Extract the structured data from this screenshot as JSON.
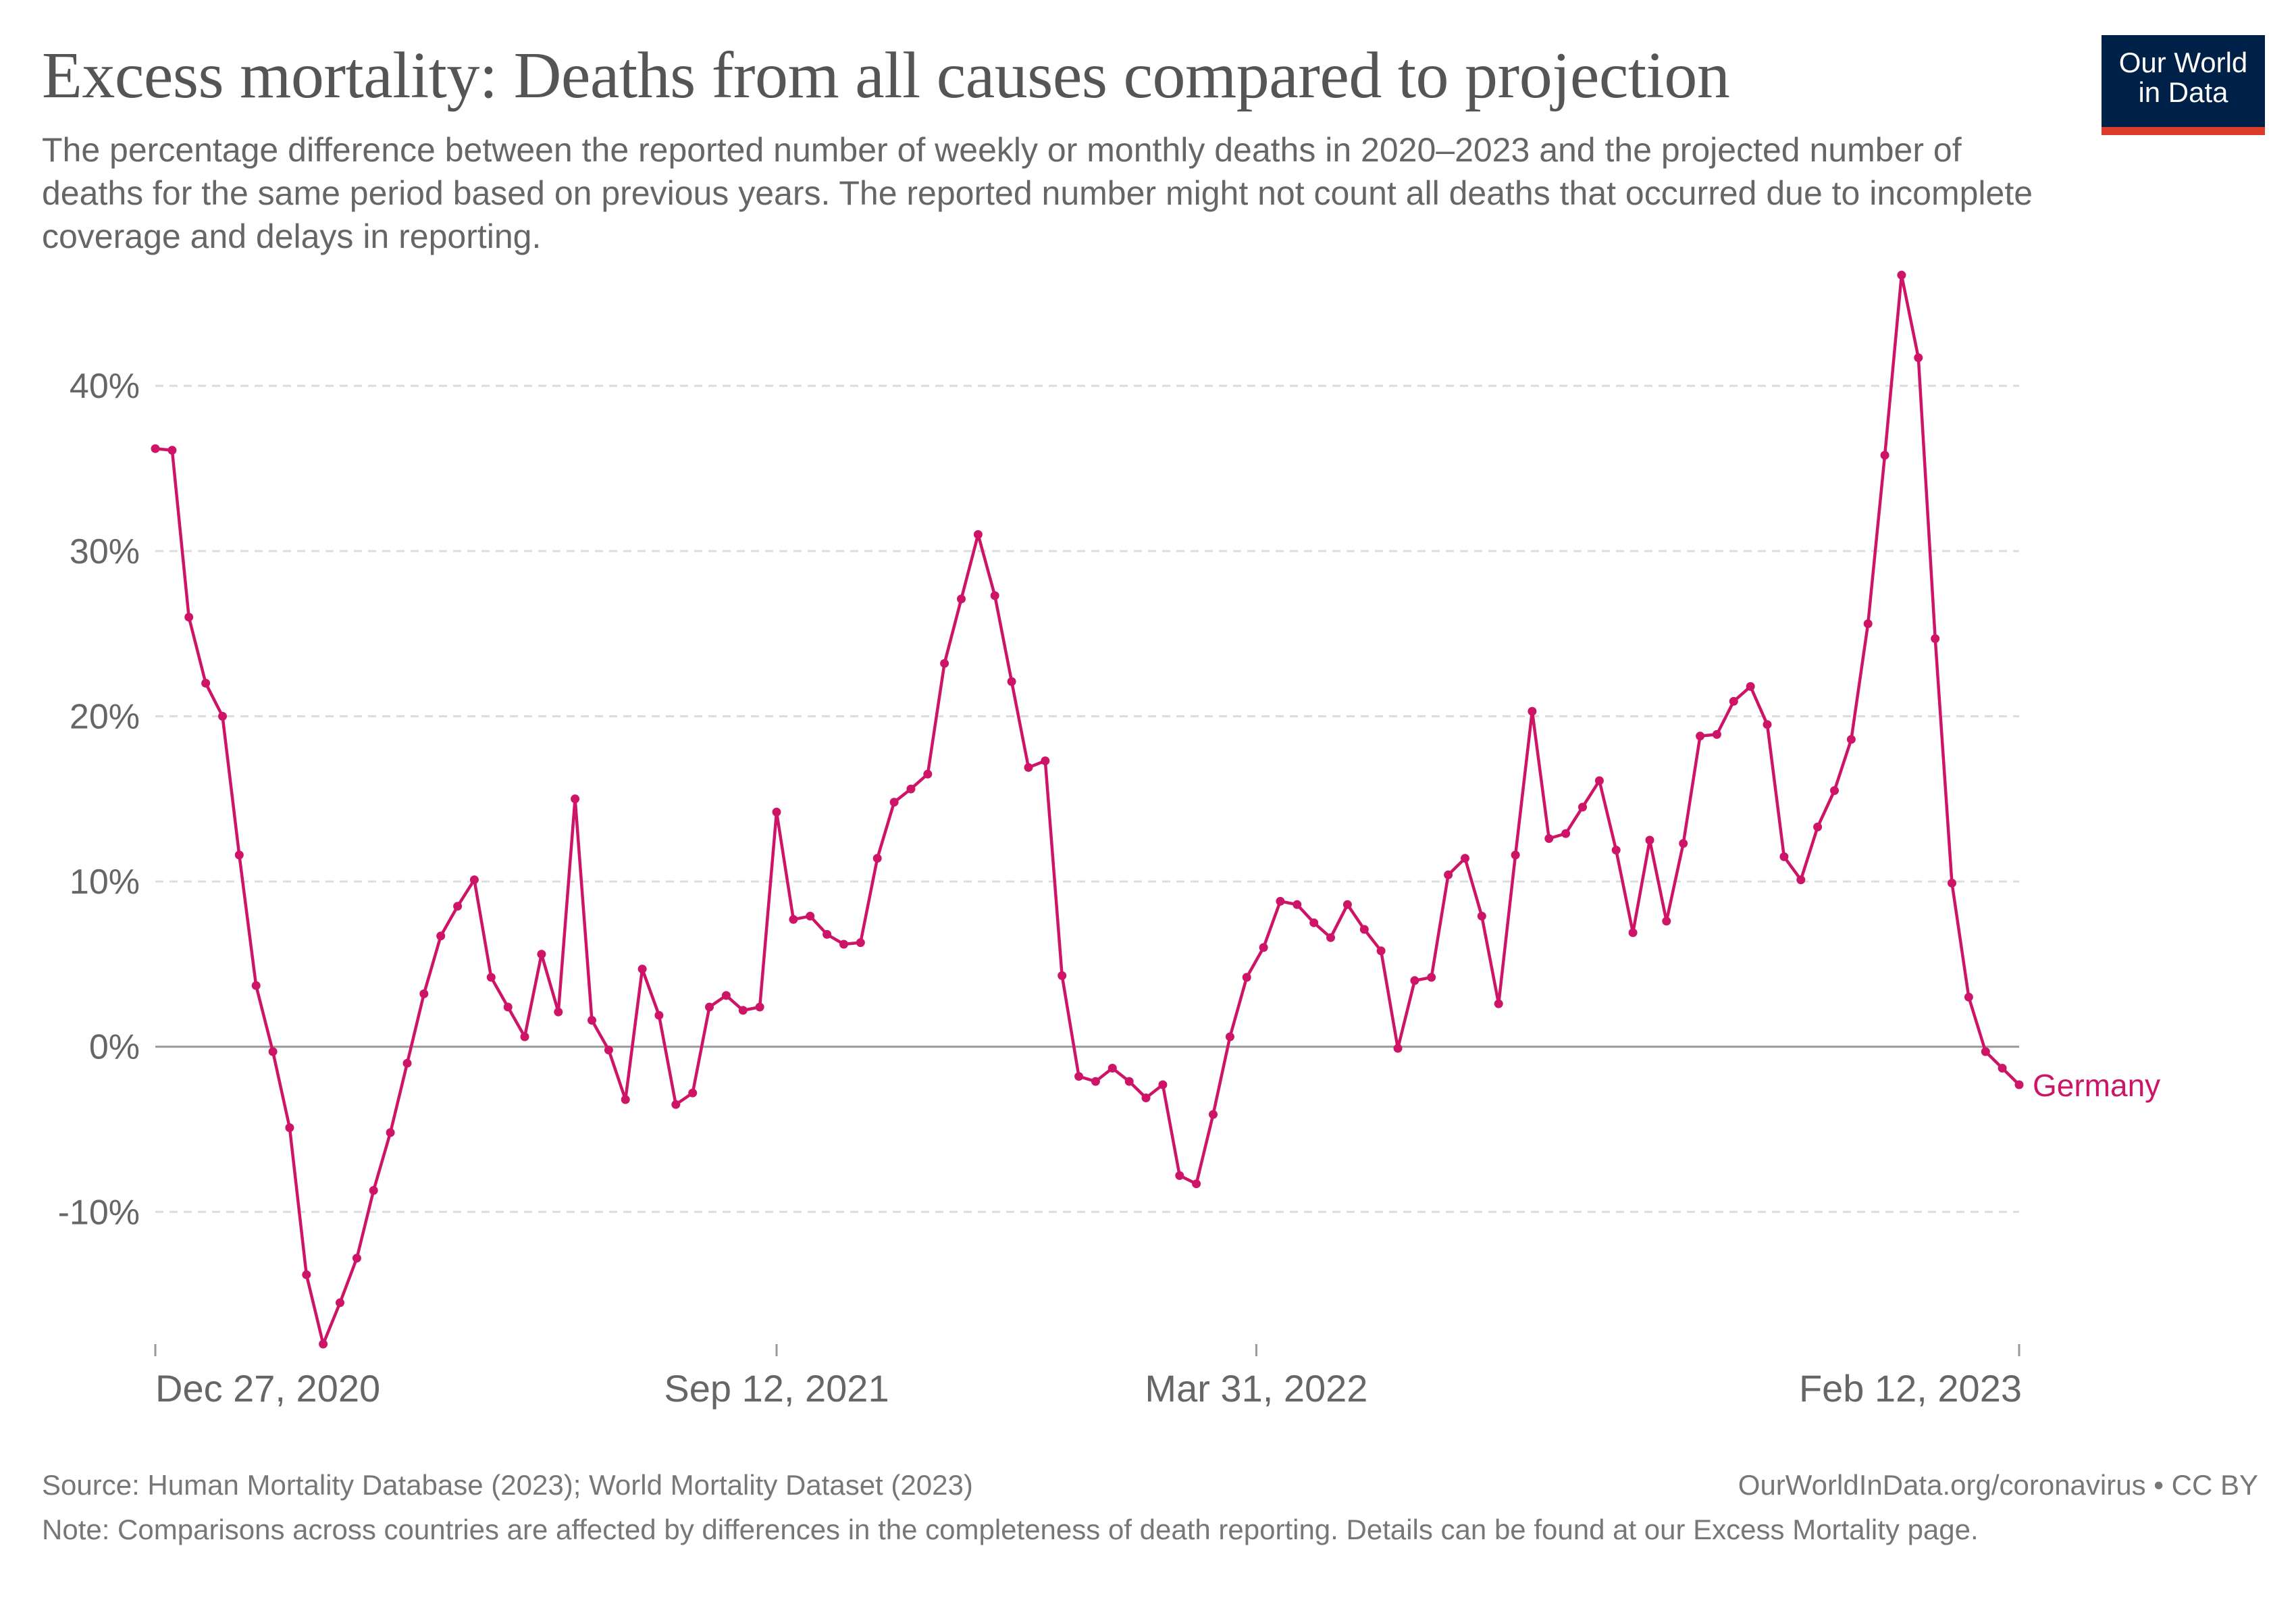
{
  "header": {
    "title": "Excess mortality: Deaths from all causes compared to projection",
    "subtitle": "The percentage difference between the reported number of weekly or monthly deaths in 2020–2023 and the projected number of deaths for the same period based on previous years. The reported number might not count all deaths that occurred due to incomplete coverage and delays in reporting."
  },
  "logo": {
    "line1": "Our World",
    "line2": "in Data"
  },
  "footer": {
    "source": "Source: Human Mortality Database (2023); World Mortality Dataset (2023)",
    "license": "OurWorldInData.org/coronavirus • CC BY",
    "note": "Note: Comparisons across countries are affected by differences in the completeness of death reporting. Details can be found at our Excess Mortality page."
  },
  "chart_data": {
    "type": "line",
    "title": "Excess mortality: Deaths from all causes compared to projection",
    "xlabel": "",
    "ylabel": "",
    "ylim": [
      -18,
      47
    ],
    "yticks": [
      -10,
      0,
      10,
      20,
      30,
      40
    ],
    "ytick_labels": [
      "-10%",
      "0%",
      "10%",
      "20%",
      "30%",
      "40%"
    ],
    "xlim": [
      "2020-12-27",
      "2023-02-12"
    ],
    "xticks": [
      "2020-12-27",
      "2021-09-12",
      "2022-03-31",
      "2023-02-12"
    ],
    "xtick_labels": [
      "Dec 27, 2020",
      "Sep 12, 2021",
      "Mar 31, 2022",
      "Feb 12, 2023"
    ],
    "grid": true,
    "legend": "label at end of line",
    "colors": {
      "series": "#ce1466",
      "zero_line": "#999999",
      "grid": "#dddddd",
      "text": "#666666"
    },
    "series": [
      {
        "name": "Germany",
        "x": [
          "2020-12-27",
          "2021-01-03",
          "2021-01-10",
          "2021-01-17",
          "2021-01-24",
          "2021-01-31",
          "2021-02-07",
          "2021-02-14",
          "2021-02-21",
          "2021-02-28",
          "2021-03-07",
          "2021-03-14",
          "2021-03-21",
          "2021-03-28",
          "2021-04-04",
          "2021-04-11",
          "2021-04-18",
          "2021-04-25",
          "2021-05-02",
          "2021-05-09",
          "2021-05-16",
          "2021-05-23",
          "2021-05-30",
          "2021-06-06",
          "2021-06-13",
          "2021-06-20",
          "2021-06-27",
          "2021-07-04",
          "2021-07-11",
          "2021-07-18",
          "2021-07-25",
          "2021-08-01",
          "2021-08-08",
          "2021-08-15",
          "2021-08-22",
          "2021-08-29",
          "2021-09-05",
          "2021-09-12",
          "2021-09-19",
          "2021-09-26",
          "2021-10-03",
          "2021-10-10",
          "2021-10-17",
          "2021-10-24",
          "2021-10-31",
          "2021-11-07",
          "2021-11-14",
          "2021-11-21",
          "2021-11-28",
          "2021-12-05",
          "2021-12-12",
          "2021-12-19",
          "2021-12-26",
          "2022-01-02",
          "2022-01-09",
          "2022-01-16",
          "2022-01-23",
          "2022-01-30",
          "2022-02-06",
          "2022-02-13",
          "2022-02-20",
          "2022-02-27",
          "2022-03-06",
          "2022-03-13",
          "2022-03-20",
          "2022-03-27",
          "2022-04-03",
          "2022-04-10",
          "2022-04-17",
          "2022-04-24",
          "2022-05-01",
          "2022-05-08",
          "2022-05-15",
          "2022-05-22",
          "2022-05-29",
          "2022-06-05",
          "2022-06-12",
          "2022-06-19",
          "2022-06-26",
          "2022-07-03",
          "2022-07-10",
          "2022-07-17",
          "2022-07-24",
          "2022-07-31",
          "2022-08-07",
          "2022-08-14",
          "2022-08-21",
          "2022-08-28",
          "2022-09-04",
          "2022-09-11",
          "2022-09-18",
          "2022-09-25",
          "2022-10-02",
          "2022-10-09",
          "2022-10-16",
          "2022-10-23",
          "2022-10-30",
          "2022-11-06",
          "2022-11-13",
          "2022-11-20",
          "2022-11-27",
          "2022-12-04",
          "2022-12-11",
          "2022-12-18",
          "2022-12-25",
          "2023-01-01",
          "2023-01-08",
          "2023-01-15",
          "2023-01-22",
          "2023-01-29",
          "2023-02-05",
          "2023-02-12"
        ],
        "values": [
          36.2,
          36.1,
          26.0,
          22.0,
          20.0,
          11.6,
          3.7,
          -0.3,
          -4.9,
          -13.8,
          -18.0,
          -15.5,
          -12.8,
          -8.7,
          -5.2,
          -1.0,
          3.2,
          6.7,
          8.5,
          10.1,
          4.2,
          2.4,
          0.6,
          5.6,
          2.1,
          15.0,
          1.6,
          -0.2,
          -3.2,
          4.7,
          1.9,
          -3.5,
          -2.8,
          2.4,
          3.1,
          2.2,
          2.4,
          14.2,
          7.7,
          7.9,
          6.8,
          6.2,
          6.3,
          11.4,
          14.8,
          15.6,
          16.5,
          23.2,
          27.1,
          31.0,
          27.3,
          22.1,
          16.9,
          17.3,
          4.3,
          -1.8,
          -2.1,
          -1.3,
          -2.1,
          -3.1,
          -2.3,
          -7.8,
          -8.3,
          -4.1,
          0.6,
          4.2,
          6.0,
          8.8,
          8.6,
          7.5,
          6.6,
          8.6,
          7.1,
          5.8,
          -0.1,
          4.0,
          4.2,
          10.4,
          11.4,
          7.9,
          2.6,
          11.6,
          20.3,
          12.6,
          12.9,
          14.5,
          16.1,
          11.9,
          6.9,
          12.5,
          7.6,
          12.3,
          18.8,
          18.9,
          20.9,
          21.8,
          19.5,
          11.5,
          10.1,
          13.3,
          15.5,
          18.6,
          25.6,
          35.8,
          46.7,
          41.7,
          24.7,
          9.9,
          3.0,
          -0.3,
          -1.3,
          -2.3
        ]
      }
    ]
  }
}
